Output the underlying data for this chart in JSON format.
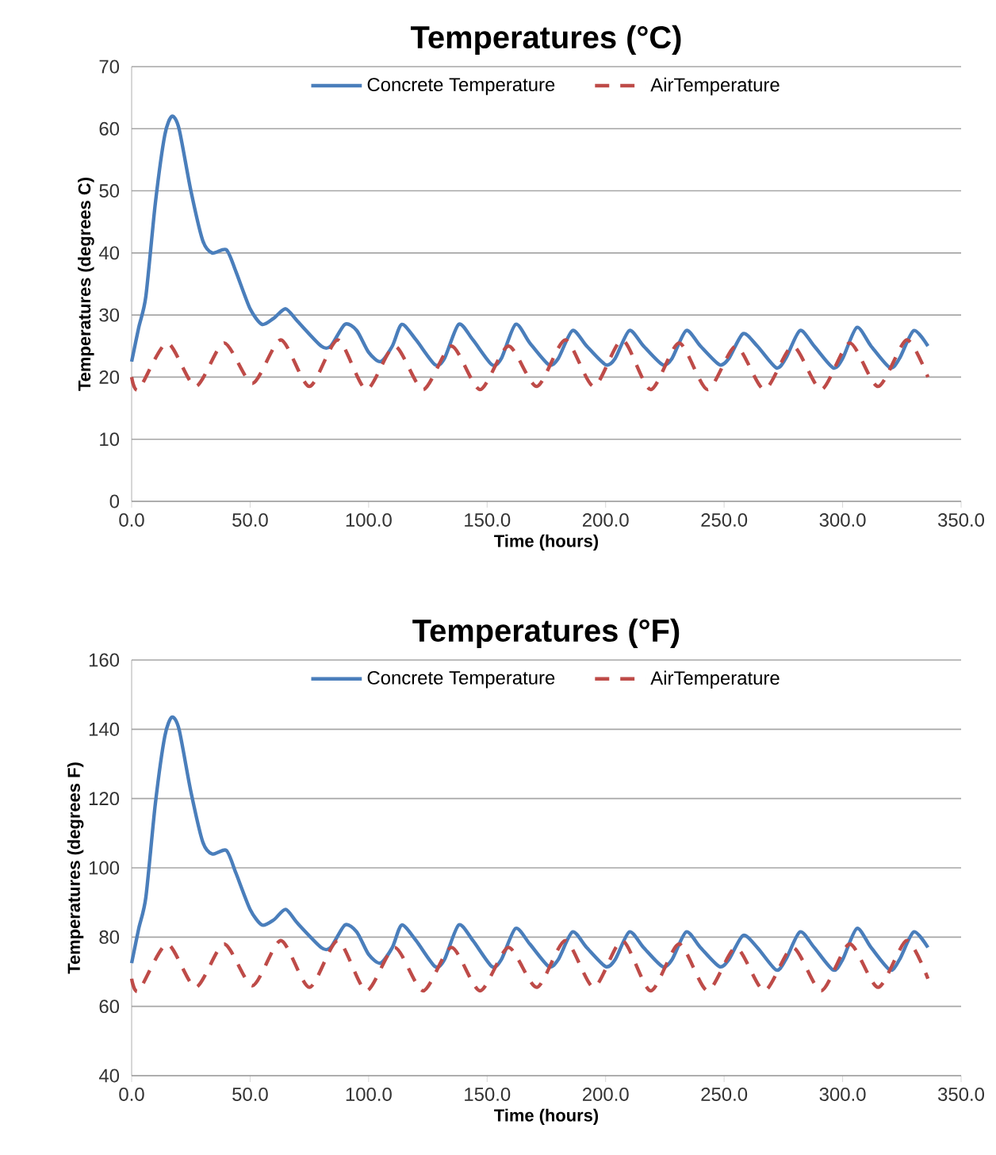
{
  "chart_data": [
    {
      "type": "line",
      "title": "Temperatures (°C)",
      "xlabel": "Time (hours)",
      "ylabel": "Temperatures (degrees C)",
      "xlim": [
        0,
        350
      ],
      "xticks": [
        {
          "value": 0,
          "label": "0.0"
        },
        {
          "value": 50,
          "label": "50.0"
        },
        {
          "value": 100,
          "label": "100.0"
        },
        {
          "value": 150,
          "label": "150.0"
        },
        {
          "value": 200,
          "label": "200.0"
        },
        {
          "value": 250,
          "label": "250.0"
        },
        {
          "value": 300,
          "label": "300.0"
        },
        {
          "value": 350,
          "label": "350.0"
        }
      ],
      "ylim": [
        0,
        70
      ],
      "yticks": [
        0,
        10,
        20,
        30,
        40,
        50,
        60,
        70
      ],
      "grid": "y",
      "legend": "top",
      "series": [
        {
          "name": "Concrete Temperature",
          "color": "#4a7ebb",
          "line_style": "solid",
          "x": [
            0,
            3,
            6,
            10,
            14,
            17,
            20,
            25,
            30,
            34,
            40,
            44,
            50,
            55,
            60,
            65,
            70,
            80,
            84,
            90,
            95,
            100,
            105,
            110,
            114,
            120,
            128,
            132,
            138,
            144,
            152,
            156,
            162,
            168,
            176,
            180,
            186,
            192,
            200,
            204,
            210,
            216,
            224,
            228,
            234,
            240,
            248,
            252,
            258,
            264,
            272,
            276,
            282,
            288,
            296,
            300,
            306,
            312,
            320,
            324,
            330,
            336
          ],
          "values": [
            22.5,
            28,
            33,
            48,
            59,
            62,
            60,
            50,
            42,
            40,
            40.5,
            37,
            31,
            28.5,
            29.5,
            31,
            29,
            25,
            25,
            28.5,
            27.5,
            24,
            22.5,
            25,
            28.5,
            26,
            22,
            23,
            28.5,
            26,
            22,
            23,
            28.5,
            25.5,
            22,
            23,
            27.5,
            25,
            22,
            23,
            27.5,
            25,
            22,
            23,
            27.5,
            25,
            22,
            23,
            27,
            25,
            21.5,
            23,
            27.5,
            25,
            21.5,
            23,
            28,
            25,
            21.5,
            23,
            27.5,
            25
          ]
        },
        {
          "name": "AirTemperature",
          "color": "#be4b48",
          "line_style": "dashed",
          "x": [
            0,
            3,
            15,
            27,
            39,
            51,
            63,
            75,
            87,
            99,
            111,
            123,
            135,
            147,
            159,
            171,
            183,
            195,
            207,
            219,
            231,
            243,
            255,
            267,
            279,
            291,
            303,
            315,
            327,
            336
          ],
          "values": [
            20,
            18,
            25.5,
            18.5,
            25.5,
            19,
            26,
            18.5,
            26,
            18,
            25,
            18,
            25,
            18,
            25,
            18.5,
            26,
            18.5,
            26,
            18,
            25.5,
            18,
            25,
            18,
            25,
            18,
            25.5,
            18.5,
            26,
            20
          ]
        }
      ]
    },
    {
      "type": "line",
      "title": "Temperatures (°F)",
      "xlabel": "Time (hours)",
      "ylabel": "Temperatures (degrees F)",
      "xlim": [
        0,
        350
      ],
      "xticks": [
        {
          "value": 0,
          "label": "0.0"
        },
        {
          "value": 50,
          "label": "50.0"
        },
        {
          "value": 100,
          "label": "100.0"
        },
        {
          "value": 150,
          "label": "150.0"
        },
        {
          "value": 200,
          "label": "200.0"
        },
        {
          "value": 250,
          "label": "250.0"
        },
        {
          "value": 300,
          "label": "300.0"
        },
        {
          "value": 350,
          "label": "350.0"
        }
      ],
      "ylim": [
        40,
        160
      ],
      "yticks": [
        40,
        60,
        80,
        100,
        120,
        140,
        160
      ],
      "grid": "y",
      "legend": "top",
      "series": [
        {
          "name": "Concrete Temperature",
          "color": "#4a7ebb",
          "line_style": "solid",
          "x": [
            0,
            3,
            6,
            10,
            14,
            17,
            20,
            25,
            30,
            34,
            40,
            44,
            50,
            55,
            60,
            65,
            70,
            80,
            84,
            90,
            95,
            100,
            105,
            110,
            114,
            120,
            128,
            132,
            138,
            144,
            152,
            156,
            162,
            168,
            176,
            180,
            186,
            192,
            200,
            204,
            210,
            216,
            224,
            228,
            234,
            240,
            248,
            252,
            258,
            264,
            272,
            276,
            282,
            288,
            296,
            300,
            306,
            312,
            320,
            324,
            330,
            336
          ],
          "values": [
            72.5,
            82.5,
            91.5,
            118.5,
            138,
            143.5,
            140,
            122,
            107.5,
            104,
            105,
            98.5,
            88,
            83.5,
            85,
            88,
            84,
            77,
            77,
            83.5,
            81.5,
            75,
            72.5,
            77,
            83.5,
            79,
            71.5,
            73.5,
            83.5,
            79,
            71.5,
            73.5,
            82.5,
            78,
            71.5,
            73.5,
            81.5,
            77,
            71.5,
            73.5,
            81.5,
            77,
            71.5,
            73.5,
            81.5,
            77,
            71.5,
            73.5,
            80.5,
            77,
            70.5,
            73.5,
            81.5,
            77,
            70.5,
            73.5,
            82.5,
            77,
            70.5,
            73.5,
            81.5,
            77
          ]
        },
        {
          "name": "AirTemperature",
          "color": "#be4b48",
          "line_style": "dashed",
          "x": [
            0,
            3,
            15,
            27,
            39,
            51,
            63,
            75,
            87,
            99,
            111,
            123,
            135,
            147,
            159,
            171,
            183,
            195,
            207,
            219,
            231,
            243,
            255,
            267,
            279,
            291,
            303,
            315,
            327,
            336
          ],
          "values": [
            68,
            64.5,
            78,
            65.5,
            78,
            66,
            79,
            65.5,
            79,
            64.5,
            77,
            64.5,
            77,
            64.5,
            77,
            65.5,
            79,
            65.5,
            79,
            64.5,
            78,
            64.5,
            77,
            64.5,
            77,
            64.5,
            78,
            65.5,
            79,
            68
          ]
        }
      ]
    }
  ]
}
